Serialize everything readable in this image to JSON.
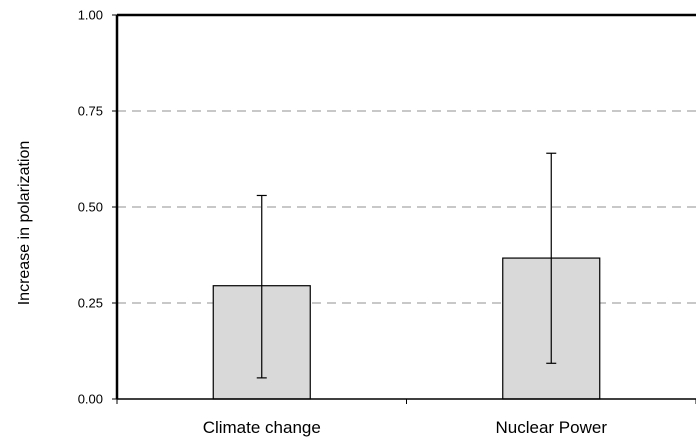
{
  "chart_data": {
    "type": "bar",
    "title": "",
    "xlabel": "",
    "ylabel": "Increase in polarization",
    "categories": [
      "Climate change",
      "Nuclear Power"
    ],
    "values": [
      0.295,
      0.367
    ],
    "error_bars": {
      "upper": [
        0.53,
        0.64
      ],
      "lower": [
        0.055,
        0.093
      ]
    },
    "ylim": [
      0,
      1
    ],
    "yticks": [
      "0.00",
      "0.25",
      "0.50",
      "0.75",
      "1.00"
    ],
    "grid": true,
    "legend": "none",
    "colors": {
      "bar_fill": "#d9d9d9",
      "bar_stroke": "#000000",
      "grid": "#a6a6a6",
      "axis": "#000000"
    }
  }
}
